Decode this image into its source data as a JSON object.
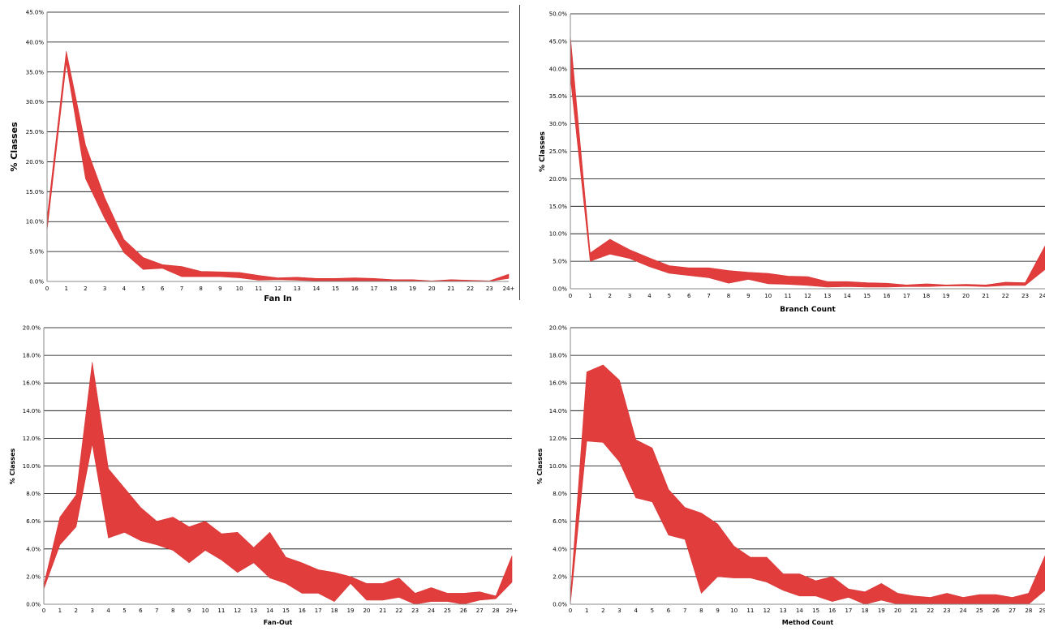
{
  "chart_data": [
    {
      "type": "area",
      "xlabel": "Fan In",
      "ylabel": "% Classes",
      "categories": [
        "0",
        "1",
        "2",
        "3",
        "4",
        "5",
        "6",
        "7",
        "8",
        "9",
        "10",
        "11",
        "12",
        "13",
        "14",
        "15",
        "16",
        "17",
        "18",
        "19",
        "20",
        "21",
        "22",
        "23",
        "24+"
      ],
      "ylim": [
        0,
        45
      ],
      "yticks": [
        "0.0%",
        "5.0%",
        "10.0%",
        "15.0%",
        "20.0%",
        "25.0%",
        "30.0%",
        "35.0%",
        "40.0%",
        "45.0%"
      ],
      "grid": true,
      "series": [
        {
          "values": [
            8.5,
            36.5,
            17.2,
            10.5,
            4.8,
            2.0,
            2.2,
            0.8,
            0.8,
            0.8,
            0.6,
            0.2,
            0.3,
            0.2,
            0.1,
            0.1,
            0.1,
            0.1,
            0.1,
            0.1,
            0.0,
            0.0,
            0.0,
            0.0,
            0.5
          ]
        },
        {
          "values": [
            10.5,
            38.5,
            22.8,
            14.0,
            7.0,
            4.0,
            2.8,
            2.5,
            1.7,
            1.6,
            1.5,
            1.0,
            0.6,
            0.7,
            0.5,
            0.5,
            0.6,
            0.5,
            0.3,
            0.3,
            0.1,
            0.3,
            0.2,
            0.1,
            1.2
          ]
        }
      ]
    },
    {
      "type": "area",
      "xlabel": "Branch Count",
      "ylabel": "% Classes",
      "categories": [
        "0",
        "1",
        "2",
        "3",
        "4",
        "5",
        "6",
        "7",
        "8",
        "9",
        "10",
        "11",
        "12",
        "13",
        "14",
        "15",
        "16",
        "17",
        "18",
        "19",
        "20",
        "21",
        "22",
        "23",
        "24+"
      ],
      "ylim": [
        0,
        50
      ],
      "yticks": [
        "0.0%",
        "5.0%",
        "10.0%",
        "15.0%",
        "20.0%",
        "25.0%",
        "30.0%",
        "35.0%",
        "40.0%",
        "45.0%",
        "50.0%"
      ],
      "grid": true,
      "series": [
        {
          "values": [
            38.5,
            5.0,
            6.3,
            5.5,
            4.0,
            2.8,
            2.4,
            2.0,
            1.0,
            1.7,
            0.9,
            0.8,
            0.6,
            0.3,
            0.4,
            0.3,
            0.3,
            0.4,
            0.4,
            0.5,
            0.5,
            0.4,
            0.6,
            0.6,
            3.5
          ]
        },
        {
          "values": [
            46.0,
            6.5,
            9.0,
            7.1,
            5.6,
            4.2,
            3.8,
            3.8,
            3.3,
            3.0,
            2.8,
            2.3,
            2.2,
            1.3,
            1.3,
            1.1,
            1.0,
            0.7,
            0.9,
            0.7,
            0.8,
            0.7,
            1.2,
            1.1,
            7.8
          ]
        }
      ]
    },
    {
      "type": "area",
      "xlabel": "Fan-Out",
      "ylabel": "% Classes",
      "categories": [
        "0",
        "1",
        "2",
        "3",
        "4",
        "5",
        "6",
        "7",
        "8",
        "9",
        "10",
        "11",
        "12",
        "13",
        "14",
        "15",
        "16",
        "17",
        "18",
        "19",
        "20",
        "21",
        "22",
        "23",
        "24",
        "25",
        "26",
        "27",
        "28",
        "29+"
      ],
      "ylim": [
        0,
        20
      ],
      "yticks": [
        "0.0%",
        "2.0%",
        "4.0%",
        "6.0%",
        "8.0%",
        "10.0%",
        "12.0%",
        "14.0%",
        "16.0%",
        "18.0%",
        "20.0%"
      ],
      "grid": true,
      "series": [
        {
          "values": [
            1.1,
            4.3,
            5.6,
            11.6,
            4.8,
            5.2,
            4.6,
            4.3,
            3.9,
            3.0,
            3.9,
            3.2,
            2.3,
            3.0,
            1.9,
            1.5,
            0.8,
            0.8,
            0.2,
            1.5,
            0.3,
            0.3,
            0.5,
            0.0,
            0.2,
            0.2,
            0.0,
            0.3,
            0.4,
            1.6
          ]
        },
        {
          "values": [
            1.4,
            6.3,
            7.9,
            17.5,
            9.8,
            8.4,
            7.0,
            6.0,
            6.3,
            5.6,
            6.0,
            5.1,
            5.2,
            4.1,
            5.2,
            3.4,
            3.0,
            2.5,
            2.3,
            2.0,
            1.5,
            1.5,
            1.9,
            0.8,
            1.2,
            0.8,
            0.8,
            0.9,
            0.6,
            3.5
          ]
        }
      ]
    },
    {
      "type": "area",
      "xlabel": "Method Count",
      "ylabel": "% Classes",
      "categories": [
        "0",
        "1",
        "2",
        "3",
        "4",
        "5",
        "6",
        "7",
        "8",
        "9",
        "10",
        "11",
        "12",
        "13",
        "14",
        "15",
        "16",
        "17",
        "18",
        "19",
        "20",
        "21",
        "22",
        "23",
        "24",
        "25",
        "26",
        "27",
        "28",
        "29+"
      ],
      "ylim": [
        0,
        20
      ],
      "yticks": [
        "0.0%",
        "2.0%",
        "4.0%",
        "6.0%",
        "8.0%",
        "10.0%",
        "12.0%",
        "14.0%",
        "16.0%",
        "18.0%",
        "20.0%"
      ],
      "grid": true,
      "series": [
        {
          "values": [
            0.0,
            11.8,
            11.7,
            10.3,
            7.7,
            7.4,
            5.0,
            4.7,
            0.8,
            2.0,
            1.9,
            1.9,
            1.6,
            1.0,
            0.6,
            0.6,
            0.2,
            0.5,
            0.0,
            0.3,
            0.0,
            0.0,
            0.0,
            0.0,
            0.0,
            0.0,
            0.0,
            0.0,
            0.0,
            1.0
          ]
        },
        {
          "values": [
            0.5,
            16.8,
            17.3,
            16.2,
            11.9,
            11.3,
            8.3,
            7.0,
            6.6,
            5.8,
            4.2,
            3.4,
            3.4,
            2.2,
            2.2,
            1.7,
            2.0,
            1.1,
            0.9,
            1.5,
            0.8,
            0.6,
            0.5,
            0.8,
            0.5,
            0.7,
            0.7,
            0.5,
            0.8,
            3.5
          ]
        }
      ]
    }
  ]
}
